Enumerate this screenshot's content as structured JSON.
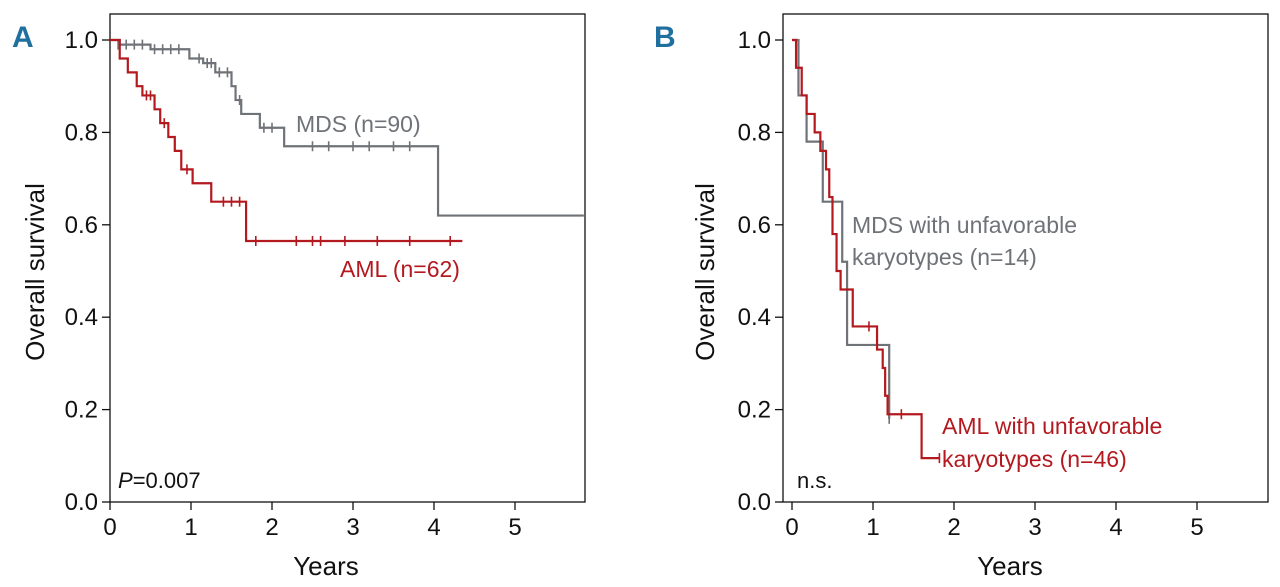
{
  "colors": {
    "mds": "#6f7378",
    "aml": "#b3191f",
    "panel_letter": "#1f6f9f",
    "axis": "#111111"
  },
  "chart_data": [
    {
      "type": "line",
      "panel": "A",
      "title": "",
      "xlabel": "Years",
      "ylabel": "Overall survival",
      "xlim": [
        -0.05,
        5.85
      ],
      "ylim": [
        0,
        1.05
      ],
      "x_ticks": [
        "0",
        "1",
        "2",
        "3",
        "4",
        "5"
      ],
      "y_ticks": [
        "0.0",
        "0.2",
        "0.4",
        "0.6",
        "0.8",
        "1.0"
      ],
      "annotation": {
        "italic": "P",
        "text": "=0.007"
      },
      "series": [
        {
          "name": "MDS (n=90)",
          "color_key": "mds",
          "steps": [
            [
              0,
              1.0
            ],
            [
              0.12,
              0.99
            ],
            [
              0.5,
              0.98
            ],
            [
              0.98,
              0.96
            ],
            [
              1.15,
              0.95
            ],
            [
              1.3,
              0.93
            ],
            [
              1.5,
              0.9
            ],
            [
              1.55,
              0.87
            ],
            [
              1.62,
              0.84
            ],
            [
              1.85,
              0.81
            ],
            [
              2.15,
              0.77
            ],
            [
              4.05,
              0.62
            ],
            [
              5.85,
              0.62
            ]
          ],
          "censored": [
            [
              0.1,
              0.99
            ],
            [
              0.2,
              0.99
            ],
            [
              0.3,
              0.99
            ],
            [
              0.4,
              0.99
            ],
            [
              0.55,
              0.98
            ],
            [
              0.65,
              0.98
            ],
            [
              0.75,
              0.98
            ],
            [
              0.85,
              0.98
            ],
            [
              1.1,
              0.96
            ],
            [
              1.2,
              0.95
            ],
            [
              1.25,
              0.95
            ],
            [
              1.35,
              0.93
            ],
            [
              1.45,
              0.93
            ],
            [
              1.6,
              0.87
            ],
            [
              1.9,
              0.81
            ],
            [
              2.0,
              0.81
            ],
            [
              2.5,
              0.77
            ],
            [
              2.7,
              0.77
            ],
            [
              3.0,
              0.77
            ],
            [
              3.2,
              0.77
            ],
            [
              3.5,
              0.77
            ],
            [
              3.7,
              0.77
            ]
          ]
        },
        {
          "name": "AML (n=62)",
          "color_key": "aml",
          "steps": [
            [
              0,
              1.0
            ],
            [
              0.12,
              0.96
            ],
            [
              0.22,
              0.93
            ],
            [
              0.33,
              0.9
            ],
            [
              0.4,
              0.88
            ],
            [
              0.55,
              0.85
            ],
            [
              0.62,
              0.82
            ],
            [
              0.72,
              0.79
            ],
            [
              0.8,
              0.76
            ],
            [
              0.88,
              0.72
            ],
            [
              1.02,
              0.69
            ],
            [
              1.25,
              0.65
            ],
            [
              1.68,
              0.565
            ],
            [
              4.35,
              0.565
            ]
          ],
          "censored": [
            [
              0.45,
              0.88
            ],
            [
              0.5,
              0.88
            ],
            [
              0.67,
              0.82
            ],
            [
              0.95,
              0.72
            ],
            [
              1.4,
              0.65
            ],
            [
              1.5,
              0.65
            ],
            [
              1.6,
              0.65
            ],
            [
              1.8,
              0.565
            ],
            [
              2.3,
              0.565
            ],
            [
              2.5,
              0.565
            ],
            [
              2.6,
              0.565
            ],
            [
              2.9,
              0.565
            ],
            [
              3.3,
              0.565
            ],
            [
              3.7,
              0.565
            ],
            [
              4.2,
              0.565
            ]
          ]
        }
      ]
    },
    {
      "type": "line",
      "panel": "B",
      "title": "",
      "xlabel": "Years",
      "ylabel": "Overall survival",
      "xlim": [
        -0.05,
        5.85
      ],
      "ylim": [
        0,
        1.05
      ],
      "x_ticks": [
        "0",
        "1",
        "2",
        "3",
        "4",
        "5"
      ],
      "y_ticks": [
        "0.0",
        "0.2",
        "0.4",
        "0.6",
        "0.8",
        "1.0"
      ],
      "annotation": {
        "italic": "",
        "text": "n.s."
      },
      "series": [
        {
          "name_lines": [
            "MDS with unfavorable",
            "karyotypes (n=14)"
          ],
          "color_key": "mds",
          "steps": [
            [
              0,
              1.0
            ],
            [
              0.08,
              0.88
            ],
            [
              0.18,
              0.78
            ],
            [
              0.38,
              0.65
            ],
            [
              0.62,
              0.52
            ],
            [
              0.68,
              0.34
            ],
            [
              1.2,
              0.18
            ],
            [
              1.2,
              0.18
            ]
          ],
          "censored": [
            [
              1.2,
              0.18
            ]
          ]
        },
        {
          "name_lines": [
            "AML with unfavorable",
            "karyotypes (n=46)"
          ],
          "color_key": "aml",
          "steps": [
            [
              0,
              1.0
            ],
            [
              0.05,
              0.94
            ],
            [
              0.12,
              0.88
            ],
            [
              0.18,
              0.84
            ],
            [
              0.28,
              0.8
            ],
            [
              0.35,
              0.76
            ],
            [
              0.42,
              0.72
            ],
            [
              0.46,
              0.66
            ],
            [
              0.5,
              0.58
            ],
            [
              0.55,
              0.5
            ],
            [
              0.6,
              0.46
            ],
            [
              0.7,
              0.46
            ],
            [
              0.75,
              0.38
            ],
            [
              1.0,
              0.38
            ],
            [
              1.05,
              0.33
            ],
            [
              1.12,
              0.29
            ],
            [
              1.15,
              0.23
            ],
            [
              1.18,
              0.19
            ],
            [
              1.6,
              0.19
            ],
            [
              1.6,
              0.095
            ],
            [
              1.82,
              0.095
            ]
          ],
          "censored": [
            [
              0.95,
              0.38
            ],
            [
              1.35,
              0.19
            ],
            [
              1.82,
              0.095
            ]
          ]
        }
      ]
    }
  ]
}
